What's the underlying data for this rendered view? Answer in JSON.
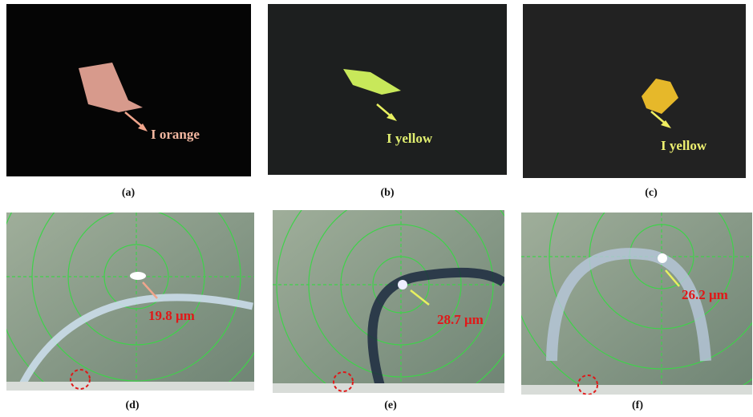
{
  "panels": [
    {
      "label": "(a)",
      "annotation": "I orange"
    },
    {
      "label": "(b)",
      "annotation": "I yellow"
    },
    {
      "label": "(c)",
      "annotation": "I yellow"
    },
    {
      "label": "(d)",
      "annotation": "19.8 μm"
    },
    {
      "label": "(e)",
      "annotation": "28.7 μm"
    },
    {
      "label": "(f)",
      "annotation": "26.2 μm"
    }
  ]
}
